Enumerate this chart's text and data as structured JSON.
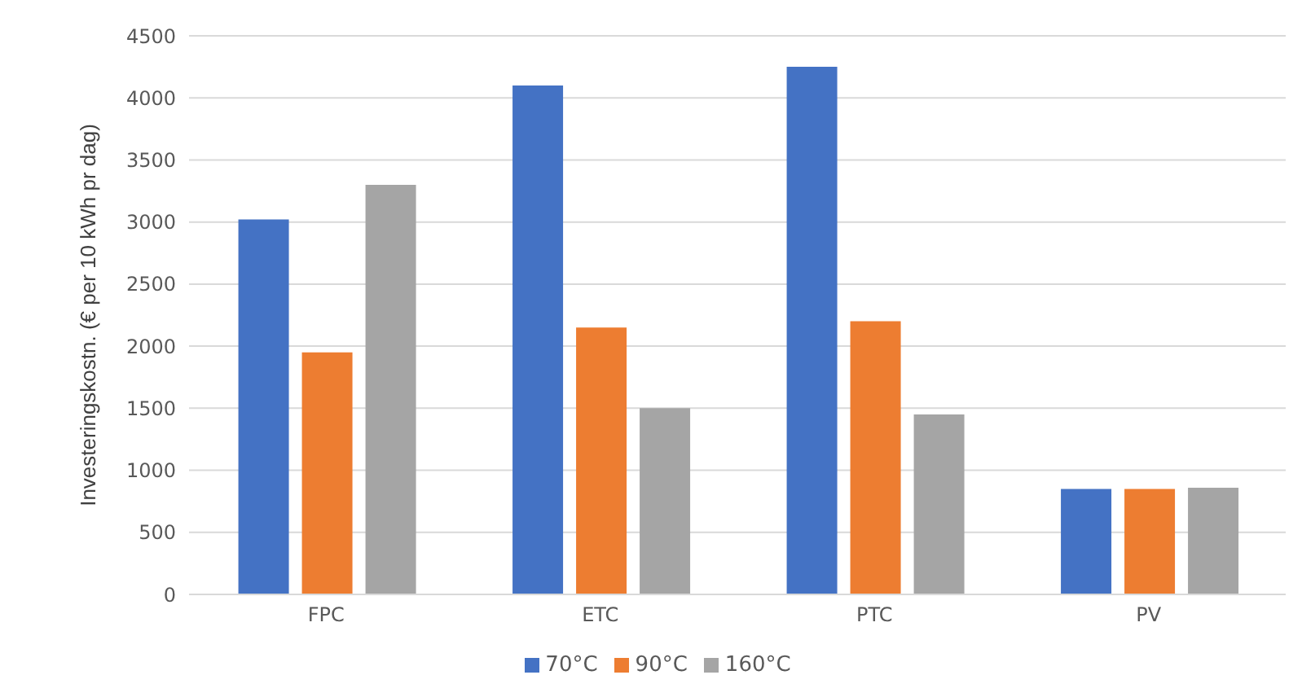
{
  "chart_data": {
    "type": "bar",
    "ylabel": "Investeringskostn. (€ per 10 kWh pr dag)",
    "categories": [
      "FPC",
      "ETC",
      "PTC",
      "PV"
    ],
    "series": [
      {
        "name": "70°C",
        "color": "#4472c4",
        "values": [
          3020,
          4100,
          4250,
          850
        ]
      },
      {
        "name": "90°C",
        "color": "#ed7d31",
        "values": [
          1950,
          2150,
          2200,
          850
        ]
      },
      {
        "name": "160°C",
        "color": "#a5a5a5",
        "values": [
          3300,
          1500,
          1450,
          860
        ]
      }
    ],
    "ylim": [
      0,
      4500
    ],
    "yticks": [
      0,
      500,
      1000,
      1500,
      2000,
      2500,
      3000,
      3500,
      4000,
      4500
    ],
    "grid": "y",
    "legend": "bottom"
  }
}
